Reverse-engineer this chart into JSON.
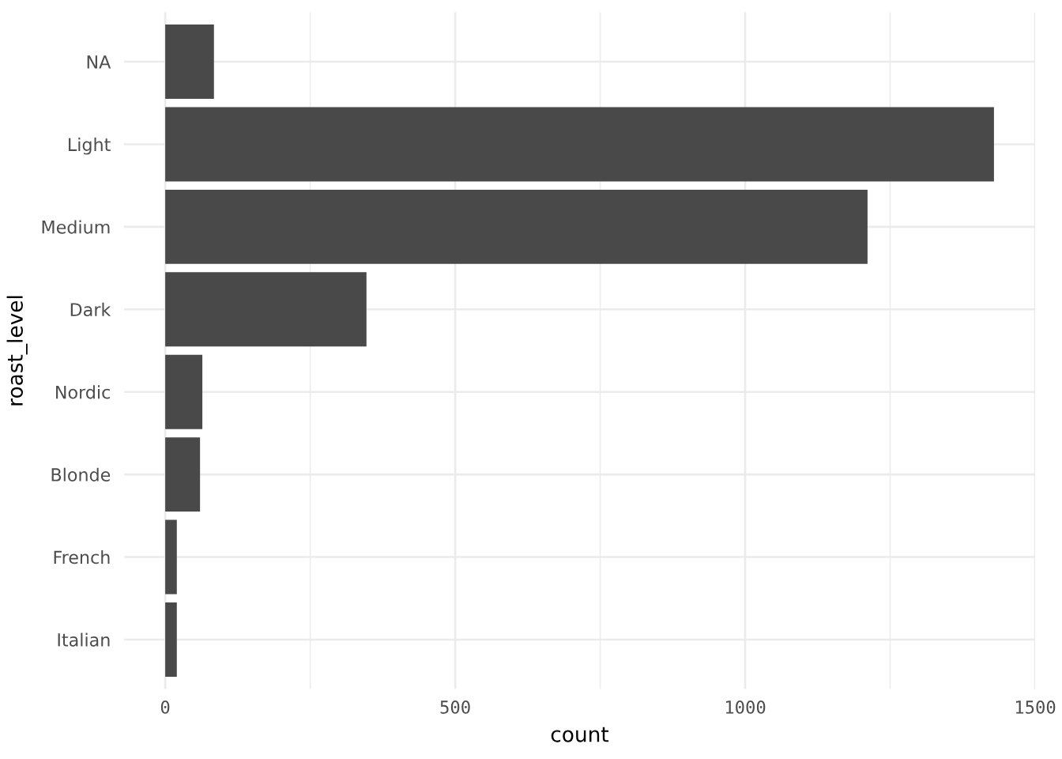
{
  "chart_data": {
    "type": "bar",
    "orientation": "horizontal",
    "xlabel": "count",
    "ylabel": "roast_level",
    "categories": [
      "NA",
      "Light",
      "Medium",
      "Dark",
      "Nordic",
      "Blonde",
      "French",
      "Italian"
    ],
    "values": [
      84,
      1429,
      1211,
      347,
      64,
      60,
      20,
      20
    ],
    "color": "#494949",
    "xlim": [
      -71,
      1500
    ],
    "xticks": [
      0,
      {
        "value": 250,
        "label": null
      },
      500,
      {
        "value": 750,
        "label": null
      },
      1000,
      {
        "value": 1250,
        "label": null
      },
      1500
    ],
    "grid": true
  }
}
